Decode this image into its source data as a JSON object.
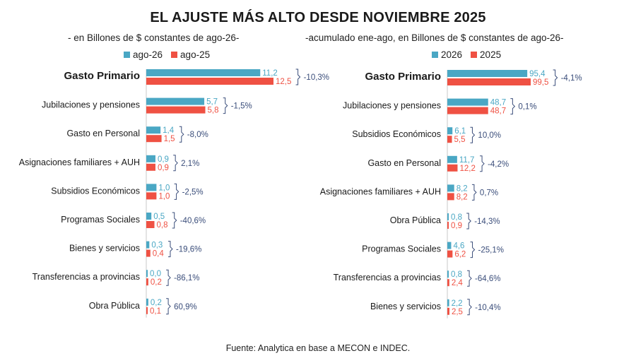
{
  "title": "EL AJUSTE MÁS ALTO DESDE NOVIEMBRE 2025",
  "source": "Fuente: Analytica en base a MECON e INDEC.",
  "colors": {
    "series_a": "#4aa7c4",
    "series_b": "#ef5143",
    "bracket": "#3a4d7a",
    "axis": "#c9c9c9"
  },
  "chart_data": [
    {
      "type": "bar",
      "orientation": "horizontal",
      "subtitle": "- en Billones de $ constantes de ago-26-",
      "legend_position": "top",
      "series": [
        {
          "name": "ago-26",
          "values": [
            11.2,
            5.7,
            1.4,
            0.9,
            1.0,
            0.5,
            0.3,
            0.0,
            0.2
          ]
        },
        {
          "name": "ago-25",
          "values": [
            12.5,
            5.8,
            1.5,
            0.9,
            1.0,
            0.8,
            0.4,
            0.2,
            0.1
          ]
        }
      ],
      "categories": [
        "Gasto Primario",
        "Jubilaciones y pensiones",
        "Gasto en Personal",
        "Asignaciones familiares + AUH",
        "Subsidios Económicos",
        "Programas Sociales",
        "Bienes y servicios",
        "Transferencias a provincias",
        "Obra Pública"
      ],
      "value_labels": [
        [
          "11,2",
          "5,7",
          "1,4",
          "0,9",
          "1,0",
          "0,5",
          "0,3",
          "0,0",
          "0,2"
        ],
        [
          "12,5",
          "5,8",
          "1,5",
          "0,9",
          "1,0",
          "0,8",
          "0,4",
          "0,2",
          "0,1"
        ]
      ],
      "changes": [
        "-10,3%",
        "-1,5%",
        "-8,0%",
        "2,1%",
        "-2,5%",
        "-40,6%",
        "-19,6%",
        "-86,1%",
        "60,9%"
      ],
      "xlim": [
        0,
        12.5
      ]
    },
    {
      "type": "bar",
      "orientation": "horizontal",
      "subtitle": "-acumulado ene-ago, en Billones de $ constantes de ago-26-",
      "legend_position": "top",
      "series": [
        {
          "name": "2026",
          "values": [
            95.4,
            48.7,
            6.1,
            11.7,
            8.2,
            0.8,
            4.6,
            0.8,
            2.2
          ]
        },
        {
          "name": "2025",
          "values": [
            99.5,
            48.7,
            5.5,
            12.2,
            8.2,
            0.9,
            6.2,
            2.4,
            2.5
          ]
        }
      ],
      "categories": [
        "Gasto Primario",
        "Jubilaciones y pensiones",
        "Subsidios Económicos",
        "Gasto en Personal",
        "Asignaciones familiares + AUH",
        "Obra Pública",
        "Programas Sociales",
        "Transferencias a provincias",
        "Bienes y servicios"
      ],
      "value_labels": [
        [
          "95,4",
          "48,7",
          "6,1",
          "11,7",
          "8,2",
          "0,8",
          "4,6",
          "0,8",
          "2,2"
        ],
        [
          "99,5",
          "48,7",
          "5,5",
          "12,2",
          "8,2",
          "0,9",
          "6,2",
          "2,4",
          "2,5"
        ]
      ],
      "changes": [
        "-4,1%",
        "0,1%",
        "10,0%",
        "-4,2%",
        "0,7%",
        "-14,3%",
        "-25,1%",
        "-64,6%",
        "-10,4%"
      ],
      "xlim": [
        0,
        99.5
      ]
    }
  ]
}
